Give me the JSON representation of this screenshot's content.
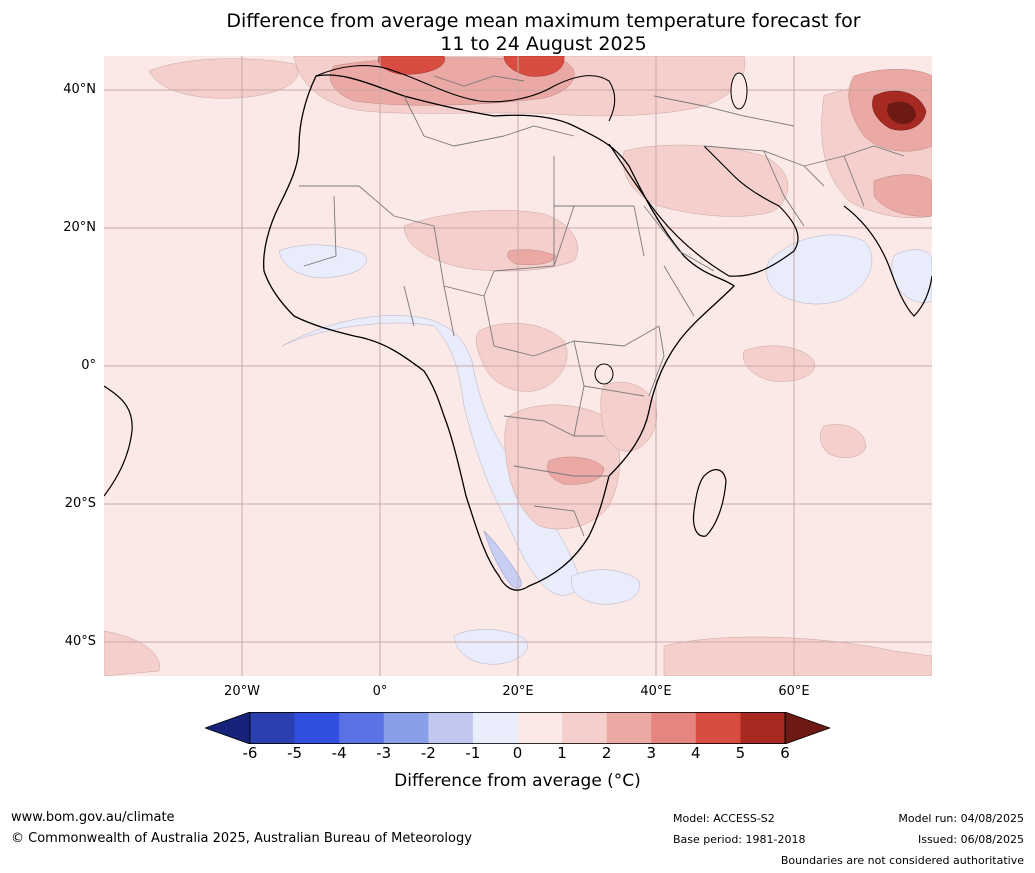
{
  "title": {
    "line1": "Difference from average mean maximum temperature forecast for",
    "line2": "11 to 24 August 2025"
  },
  "lat_labels": [
    "40°N",
    "20°N",
    "0°",
    "20°S",
    "40°S"
  ],
  "lon_labels": [
    "20°W",
    "0°",
    "20°E",
    "40°E",
    "60°E"
  ],
  "colorbar": {
    "ticks": [
      "-6",
      "-5",
      "-4",
      "-3",
      "-2",
      "-1",
      "0",
      "1",
      "2",
      "3",
      "4",
      "5",
      "6"
    ],
    "colors": [
      "#17237a",
      "#2a3fb0",
      "#3150e0",
      "#5a72e4",
      "#8a9de8",
      "#c1c8f0",
      "#e9ecfb",
      "#fbe9e7",
      "#f4cfcb",
      "#eba9a5",
      "#e48580",
      "#d94c42",
      "#a62a22",
      "#6e1a14"
    ],
    "label": "Difference from average (°C)"
  },
  "footer": {
    "url": "www.bom.gov.au/climate",
    "copyright": "© Commonwealth of Australia 2025, Australian Bureau of Meteorology",
    "model": "Model: ACCESS-S2",
    "base_period": "Base period: 1981-2018",
    "model_run": "Model run: 04/08/2025",
    "issued": "Issued: 06/08/2025",
    "disclaimer": "Boundaries are not considered authoritative"
  }
}
